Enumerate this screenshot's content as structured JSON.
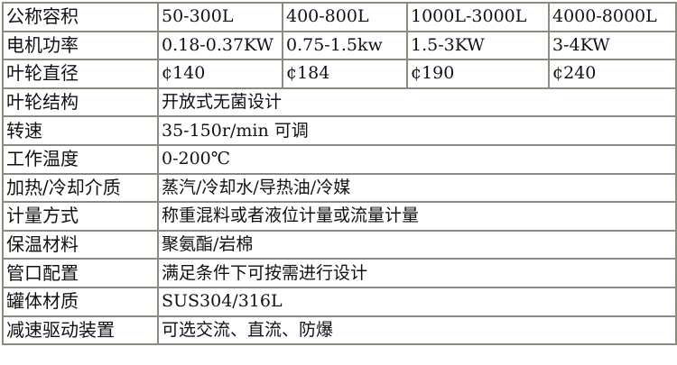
{
  "rows": [
    {
      "label": "公称容积",
      "values": [
        "50-300L",
        "400-800L",
        "1000L-3000L",
        "4000-8000L"
      ]
    },
    {
      "label": "电机功率",
      "values": [
        "0.18-0.37KW",
        "0.75-1.5kw",
        "1.5-3KW",
        "3-4KW"
      ]
    },
    {
      "label": "叶轮直径",
      "values": [
        "¢140",
        "¢184",
        "¢190",
        "¢240"
      ]
    },
    {
      "label": "叶轮结构",
      "value": "开放式无菌设计"
    },
    {
      "label": "转速",
      "value": "35-150r/min 可调"
    },
    {
      "label": "工作温度",
      "value": "0-200℃"
    },
    {
      "label": "加热/冷却介质",
      "value": "蒸汽/冷却水/导热油/冷媒"
    },
    {
      "label": "计量方式",
      "value": "称重混料或者液位计量或流量计量"
    },
    {
      "label": "保温材料",
      "value": "聚氨酯/岩棉"
    },
    {
      "label": "管口配置",
      "value": "满足条件下可按需进行设计"
    },
    {
      "label": "罐体材质",
      "value": "SUS304/316L"
    },
    {
      "label": "减速驱动装置",
      "value": "可选交流、直流、防爆"
    }
  ]
}
